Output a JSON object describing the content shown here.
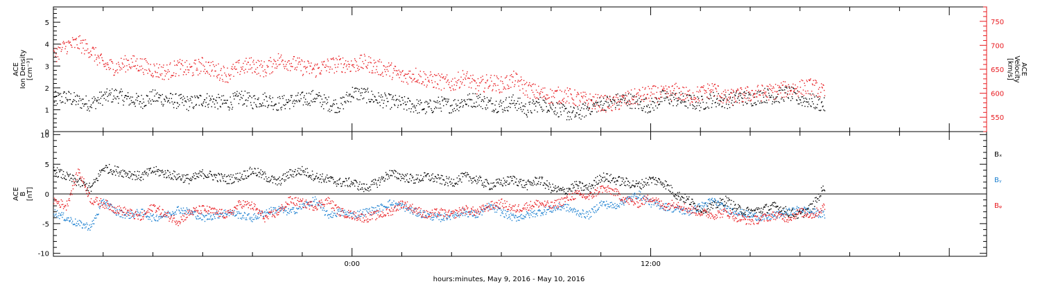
{
  "colors": {
    "black": "#000000",
    "red": "#e8191e",
    "blue": "#1a7fd0",
    "axis": "#000000"
  },
  "xaxis": {
    "label": "hours:minutes, May  9, 2016 - May 10, 2016",
    "range_hours": [
      -12,
      25.5
    ],
    "major_ticks": [
      {
        "hour": 0,
        "label": "0:00"
      },
      {
        "hour": 12,
        "label": "12:00"
      }
    ],
    "minor_step_hours": 2
  },
  "chart_data": [
    {
      "type": "scatter",
      "title": "",
      "ylabel_lines": [
        "ACE",
        "Ion Density",
        "[cm⁻³]"
      ],
      "ylim": [
        0,
        5.7
      ],
      "yticks": [
        0,
        1,
        2,
        3,
        4,
        5
      ],
      "y2label_lines": [
        "ACE",
        "Velocity",
        "[km/s]"
      ],
      "y2lim": [
        520,
        780
      ],
      "y2ticks": [
        550,
        600,
        650,
        700,
        750
      ],
      "series": [
        {
          "color_key": "black",
          "axis": "left",
          "x": [
            -12,
            -11.5,
            -11,
            -10.5,
            -10,
            -9.5,
            -9,
            -8.5,
            -8,
            -7.5,
            -7,
            -6.5,
            -6,
            -5.5,
            -5,
            -4.5,
            -4,
            -3.5,
            -3,
            -2.5,
            -2,
            -1.5,
            -1,
            -0.5,
            0,
            0.5,
            1,
            1.5,
            2,
            2.5,
            3,
            3.5,
            4,
            4.5,
            5,
            5.5,
            6,
            6.5,
            7,
            7.5,
            8,
            8.5,
            9,
            9.5,
            10,
            10.5,
            11,
            11.5,
            12,
            12.5,
            13,
            13.5,
            14,
            14.5,
            15,
            15.5,
            16,
            16.5,
            17,
            17.5,
            18,
            18.5,
            19
          ],
          "y": [
            1.5,
            1.6,
            1.4,
            1.3,
            1.6,
            1.7,
            1.5,
            1.4,
            1.6,
            1.5,
            1.4,
            1.3,
            1.5,
            1.4,
            1.3,
            1.6,
            1.4,
            1.5,
            1.3,
            1.4,
            1.5,
            1.6,
            1.3,
            1.2,
            1.8,
            1.7,
            1.5,
            1.4,
            1.3,
            1.2,
            1.1,
            1.3,
            1.2,
            1.4,
            1.5,
            1.3,
            1.2,
            1.4,
            1.0,
            1.3,
            1.2,
            0.9,
            0.8,
            1.1,
            1.3,
            1.4,
            1.5,
            1.3,
            1.2,
            1.6,
            1.5,
            1.4,
            1.3,
            1.5,
            1.4,
            1.6,
            1.5,
            1.7,
            1.6,
            1.8,
            1.5,
            1.4,
            1.2
          ]
        },
        {
          "color_key": "red",
          "axis": "right",
          "x": [
            -12,
            -11.5,
            -11,
            -10.5,
            -10,
            -9.5,
            -9,
            -8.5,
            -8,
            -7.5,
            -7,
            -6.5,
            -6,
            -5.5,
            -5,
            -4.5,
            -4,
            -3.5,
            -3,
            -2.5,
            -2,
            -1.5,
            -1,
            -0.5,
            0,
            0.5,
            1,
            1.5,
            2,
            2.5,
            3,
            3.5,
            4,
            4.5,
            5,
            5.5,
            6,
            6.5,
            7,
            7.5,
            8,
            8.5,
            9,
            9.5,
            10,
            10.5,
            11,
            11.5,
            12,
            12.5,
            13,
            13.5,
            14,
            14.5,
            15,
            15.5,
            16,
            16.5,
            17,
            17.5,
            18,
            18.5,
            19
          ],
          "y": [
            680,
            700,
            705,
            690,
            660,
            655,
            665,
            660,
            650,
            645,
            655,
            650,
            660,
            648,
            640,
            655,
            660,
            650,
            670,
            665,
            655,
            650,
            658,
            662,
            660,
            665,
            655,
            650,
            635,
            640,
            630,
            625,
            620,
            635,
            615,
            625,
            618,
            630,
            610,
            600,
            595,
            598,
            590,
            585,
            580,
            578,
            588,
            595,
            600,
            598,
            605,
            595,
            600,
            610,
            590,
            595,
            600,
            602,
            605,
            610,
            612,
            615,
            600
          ]
        }
      ]
    },
    {
      "type": "scatter",
      "title": "",
      "ylabel_lines": [
        "ACE",
        "B",
        "[nT]"
      ],
      "ylim": [
        -10.5,
        10.5
      ],
      "yticks": [
        -10,
        -5,
        0,
        5,
        10
      ],
      "zero_line": true,
      "series": [
        {
          "name": "Bₓ",
          "color_key": "black",
          "x": [
            -12,
            -11.5,
            -11,
            -10.5,
            -10,
            -9.5,
            -9,
            -8.5,
            -8,
            -7.5,
            -7,
            -6.5,
            -6,
            -5.5,
            -5,
            -4.5,
            -4,
            -3.5,
            -3,
            -2.5,
            -2,
            -1.5,
            -1,
            -0.5,
            0,
            0.5,
            1,
            1.5,
            2,
            2.5,
            3,
            3.5,
            4,
            4.5,
            5,
            5.5,
            6,
            6.5,
            7,
            7.5,
            8,
            8.5,
            9,
            9.5,
            10,
            10.5,
            11,
            11.5,
            12,
            12.5,
            13,
            13.5,
            14,
            14.5,
            15,
            15.5,
            16,
            16.5,
            17,
            17.5,
            18,
            18.5,
            19
          ],
          "y": [
            4,
            3,
            2,
            1,
            4.5,
            4,
            3.5,
            3,
            4,
            3.5,
            3,
            2.5,
            3.5,
            3,
            2.5,
            3,
            4,
            3,
            2,
            3.5,
            4,
            3,
            2.5,
            2,
            2,
            1,
            2,
            3.5,
            3,
            2.5,
            3,
            2.5,
            2,
            3,
            2.5,
            1.5,
            2,
            2.5,
            1.5,
            2.5,
            1,
            0.5,
            1.5,
            1,
            3,
            2.5,
            2,
            1.5,
            2.5,
            2,
            0,
            -1,
            -2.5,
            -2,
            -1,
            -2.5,
            -3,
            -2.5,
            -2,
            -3,
            -3.5,
            -2,
            1.5
          ]
        },
        {
          "name": "Bᵧ",
          "color_key": "blue",
          "x": [
            -12,
            -11.5,
            -11,
            -10.5,
            -10,
            -9.5,
            -9,
            -8.5,
            -8,
            -7.5,
            -7,
            -6.5,
            -6,
            -5.5,
            -5,
            -4.5,
            -4,
            -3.5,
            -3,
            -2.5,
            -2,
            -1.5,
            -1,
            -0.5,
            0,
            0.5,
            1,
            1.5,
            2,
            2.5,
            3,
            3.5,
            4,
            4.5,
            5,
            5.5,
            6,
            6.5,
            7,
            7.5,
            8,
            8.5,
            9,
            9.5,
            10,
            10.5,
            11,
            11.5,
            12,
            12.5,
            13,
            13.5,
            14,
            14.5,
            15,
            15.5,
            16,
            16.5,
            17,
            17.5,
            18,
            18.5,
            19
          ],
          "y": [
            -3,
            -4,
            -5,
            -5.5,
            -1,
            -3,
            -3.5,
            -3,
            -4,
            -3.5,
            -2.5,
            -3,
            -4,
            -3.5,
            -3,
            -3.5,
            -4,
            -3,
            -2.5,
            -3,
            -2,
            -1,
            -3.5,
            -3,
            -3.5,
            -3,
            -2.5,
            -1.5,
            -2,
            -3,
            -3.5,
            -4,
            -3.5,
            -3,
            -3.5,
            -2,
            -3,
            -4,
            -3.5,
            -3,
            -2.5,
            -2,
            -3,
            -3.5,
            -1.5,
            -2,
            -1,
            0,
            -1.5,
            -2,
            -2.5,
            -3,
            -2,
            -1,
            -2.5,
            -3,
            -3.5,
            -4,
            -3.5,
            -3,
            -2.5,
            -3,
            -3.5
          ]
        },
        {
          "name": "Bᵩ",
          "color_key": "red",
          "x": [
            -12,
            -11.5,
            -11,
            -10.5,
            -10,
            -9.5,
            -9,
            -8.5,
            -8,
            -7.5,
            -7,
            -6.5,
            -6,
            -5.5,
            -5,
            -4.5,
            -4,
            -3.5,
            -3,
            -2.5,
            -2,
            -1.5,
            -1,
            -0.5,
            0,
            0.5,
            1,
            1.5,
            2,
            2.5,
            3,
            3.5,
            4,
            4.5,
            5,
            5.5,
            6,
            6.5,
            7,
            7.5,
            8,
            8.5,
            9,
            9.5,
            10,
            10.5,
            11,
            11.5,
            12,
            12.5,
            13,
            13.5,
            14,
            14.5,
            15,
            15.5,
            16,
            16.5,
            17,
            17.5,
            18,
            18.5,
            19
          ],
          "y": [
            -1,
            -2,
            4,
            -1,
            -1.5,
            -2.5,
            -3,
            -4,
            -2,
            -3.5,
            -4.5,
            -3,
            -2.5,
            -3,
            -3.5,
            -1.5,
            -2,
            -4,
            -3,
            -1,
            -1.5,
            -2,
            -1,
            -3,
            -3.5,
            -4,
            -3.5,
            -3,
            -1.5,
            -2.5,
            -3.5,
            -3,
            -3.5,
            -2.5,
            -3,
            -2,
            -1.5,
            -2.5,
            -2,
            -1.5,
            -2,
            -1,
            0,
            -0.5,
            1,
            0.5,
            -1,
            -1.5,
            -0.5,
            -2,
            -1.5,
            -2.5,
            -3,
            -3.5,
            -3,
            -4,
            -4.5,
            -4,
            -3.5,
            -4,
            -3,
            -3.5,
            -2
          ]
        }
      ]
    }
  ]
}
